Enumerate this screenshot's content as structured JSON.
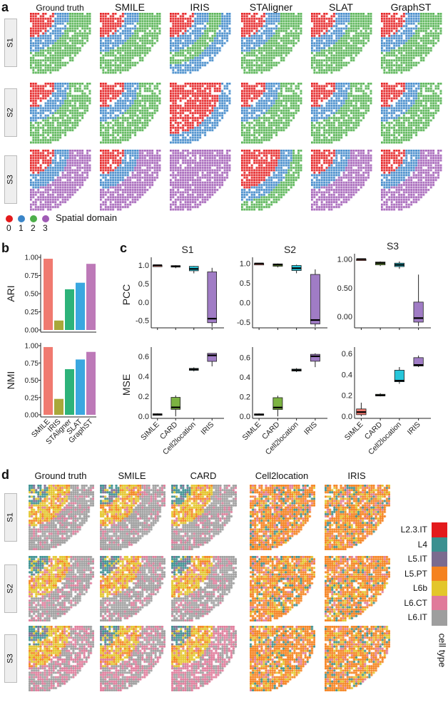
{
  "panel_labels": {
    "a": "a",
    "b": "b",
    "c": "c",
    "d": "d"
  },
  "panel_a": {
    "columns": [
      "Ground truth",
      "SMILE",
      "IRIS",
      "STAligner",
      "SLAT",
      "GraphST"
    ],
    "rows": [
      "S1",
      "S2",
      "S3"
    ],
    "domain_colors": {
      "0": "#e41a1c",
      "1": "#3a85c8",
      "2": "#4daf4a",
      "3": "#a05bb5"
    },
    "legend": {
      "title": "Spatial domain",
      "items": [
        "0",
        "1",
        "2",
        "3"
      ]
    },
    "bands": [
      [
        [
          0,
          1,
          2,
          2
        ],
        [
          0,
          1,
          2,
          2
        ],
        [
          0,
          1,
          2,
          1
        ],
        [
          0,
          1,
          2,
          2
        ],
        [
          0,
          1,
          2,
          2
        ],
        [
          0,
          1,
          2,
          2
        ]
      ],
      [
        [
          0,
          1,
          2,
          2
        ],
        [
          0,
          1,
          2,
          2
        ],
        [
          0,
          0,
          0,
          1
        ],
        [
          0,
          1,
          2,
          2
        ],
        [
          0,
          1,
          2,
          2
        ],
        [
          0,
          1,
          2,
          2
        ]
      ],
      [
        [
          0,
          1,
          3,
          3
        ],
        [
          0,
          1,
          3,
          3
        ],
        [
          3,
          3,
          3,
          3
        ],
        [
          0,
          0,
          1,
          2
        ],
        [
          0,
          1,
          3,
          3
        ],
        [
          0,
          1,
          3,
          3
        ]
      ]
    ]
  },
  "chart_data": [
    {
      "type": "bar",
      "id": "ARI",
      "ylabel": "ARI",
      "categories": [
        "SMILE",
        "IRIS",
        "STAligner",
        "SLAT",
        "GraphST"
      ],
      "values": [
        0.98,
        0.13,
        0.56,
        0.65,
        0.91
      ],
      "colors": [
        "#f07a70",
        "#a9a83a",
        "#2db37a",
        "#3aa7e0",
        "#bd79b8"
      ],
      "ylim": [
        0,
        1
      ],
      "yticks": [
        "0.00",
        "0.25",
        "0.50",
        "0.75",
        "1.00"
      ]
    },
    {
      "type": "bar",
      "id": "NMI",
      "ylabel": "NMI",
      "categories": [
        "SMILE",
        "IRIS",
        "STAligner",
        "SLAT",
        "GraphST"
      ],
      "values": [
        0.98,
        0.23,
        0.66,
        0.8,
        0.91
      ],
      "colors": [
        "#f07a70",
        "#a9a83a",
        "#2db37a",
        "#3aa7e0",
        "#bd79b8"
      ],
      "ylim": [
        0,
        1
      ],
      "yticks": [
        "0.00",
        "0.25",
        "0.50",
        "0.75",
        "1.00"
      ]
    },
    {
      "type": "box",
      "title": "S1",
      "ylabel": "PCC",
      "categories": [
        "SIMLE",
        "CARD",
        "Cell2location",
        "IRIS"
      ],
      "ylim": [
        -0.7,
        1.1
      ],
      "yticks": [
        "-0.5",
        "0.0",
        "0.5",
        "1.0"
      ],
      "boxes": [
        [
          0.99,
          1.0,
          1.0,
          1.0,
          1.0
        ],
        [
          0.92,
          0.95,
          0.97,
          0.99,
          1.0
        ],
        [
          0.78,
          0.85,
          0.9,
          0.97,
          0.98
        ],
        [
          -0.67,
          -0.56,
          -0.45,
          0.82,
          0.93
        ]
      ]
    },
    {
      "type": "box",
      "title": "S2",
      "ylabel": "",
      "categories": [
        "SIMLE",
        "CARD",
        "Cell2location",
        "IRIS"
      ],
      "ylim": [
        -0.65,
        1.05
      ],
      "yticks": [
        "-0.5",
        "0.0",
        "0.5",
        "1.0"
      ],
      "boxes": [
        [
          0.99,
          1.0,
          1.0,
          1.0,
          1.0
        ],
        [
          0.9,
          0.93,
          0.97,
          0.99,
          1.0
        ],
        [
          0.75,
          0.82,
          0.88,
          0.95,
          0.97
        ],
        [
          -0.62,
          -0.55,
          -0.45,
          0.72,
          0.85
        ]
      ]
    },
    {
      "type": "box",
      "title": "S3",
      "ylabel": "",
      "categories": [
        "SIMLE",
        "CARD",
        "Cell2location",
        "IRIS"
      ],
      "ylim": [
        -0.2,
        1.02
      ],
      "yticks": [
        "0.00",
        "0.50",
        "1.00"
      ],
      "boxes": [
        [
          0.99,
          1.0,
          1.0,
          1.0,
          1.0
        ],
        [
          0.88,
          0.9,
          0.93,
          0.95,
          0.96
        ],
        [
          0.83,
          0.87,
          0.9,
          0.93,
          0.96
        ],
        [
          -0.17,
          -0.1,
          -0.03,
          0.25,
          0.73
        ]
      ]
    },
    {
      "type": "box",
      "title": "",
      "ylabel": "MSE",
      "categories": [
        "SIMLE",
        "CARD",
        "Cell2location",
        "IRIS"
      ],
      "ylim": [
        -0.02,
        0.65
      ],
      "yticks": [
        "0.0",
        "0.2",
        "0.4",
        "0.6"
      ],
      "boxes": [
        [
          0.01,
          0.015,
          0.02,
          0.025,
          0.03
        ],
        [
          0.0,
          0.07,
          0.09,
          0.19,
          0.21
        ],
        [
          0.45,
          0.46,
          0.47,
          0.48,
          0.49
        ],
        [
          0.5,
          0.55,
          0.61,
          0.63,
          0.63
        ]
      ]
    },
    {
      "type": "box",
      "title": "",
      "ylabel": "",
      "categories": [
        "SIMLE",
        "CARD",
        "Cell2location",
        "IRIS"
      ],
      "ylim": [
        -0.02,
        0.66
      ],
      "yticks": [
        "0.0",
        "0.2",
        "0.4",
        "0.6"
      ],
      "boxes": [
        [
          0.01,
          0.015,
          0.02,
          0.025,
          0.03
        ],
        [
          0.0,
          0.07,
          0.09,
          0.19,
          0.21
        ],
        [
          0.45,
          0.46,
          0.47,
          0.48,
          0.49
        ],
        [
          0.5,
          0.56,
          0.61,
          0.63,
          0.64
        ]
      ]
    },
    {
      "type": "box",
      "title": "",
      "ylabel": "",
      "categories": [
        "SIMLE",
        "CARD",
        "Cell2location",
        "IRIS"
      ],
      "ylim": [
        -0.02,
        0.62
      ],
      "yticks": [
        "0.0",
        "0.2",
        "0.4",
        "0.6"
      ],
      "boxes": [
        [
          0.0,
          0.015,
          0.04,
          0.07,
          0.13
        ],
        [
          0.19,
          0.195,
          0.2,
          0.21,
          0.22
        ],
        [
          0.31,
          0.33,
          0.34,
          0.44,
          0.47
        ],
        [
          0.47,
          0.48,
          0.49,
          0.56,
          0.58
        ]
      ]
    }
  ],
  "box_colors": [
    "#f07a70",
    "#7cb342",
    "#26c6da",
    "#a07cc5"
  ],
  "panel_d": {
    "columns": [
      "Ground truth",
      "SMILE",
      "CARD",
      "Cell2location",
      "IRIS"
    ],
    "rows": [
      "S1",
      "S2",
      "S3"
    ],
    "legend_title": "cell type",
    "cell_types": [
      {
        "name": "L2.3.IT",
        "color": "#e31a1c"
      },
      {
        "name": "L4",
        "color": "#3a9090"
      },
      {
        "name": "L5.IT",
        "color": "#7b6b8f"
      },
      {
        "name": "L5.PT",
        "color": "#f5821f"
      },
      {
        "name": "L6b",
        "color": "#e3c62a"
      },
      {
        "name": "L6.CT",
        "color": "#e07a9a"
      },
      {
        "name": "L6.IT",
        "color": "#9e9e9e"
      }
    ],
    "mixed": [
      false,
      false,
      false,
      true,
      true
    ]
  }
}
